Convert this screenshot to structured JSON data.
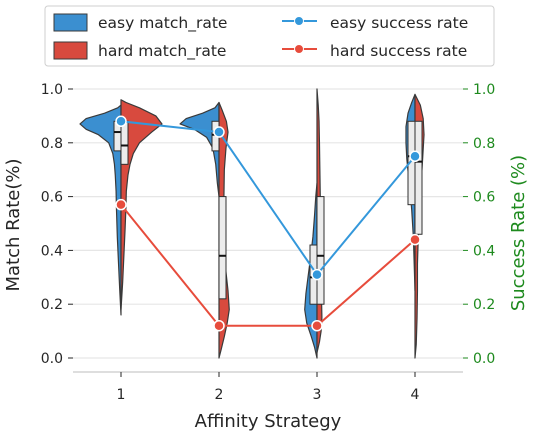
{
  "chart_data": {
    "type": "violin+line",
    "xlabel": "Affinity Strategy",
    "ylabel": "Match Rate(%)",
    "y2label": "Success Rate (%)",
    "categories": [
      "1",
      "2",
      "3",
      "4"
    ],
    "ylim": [
      0.0,
      1.0
    ],
    "y2lim": [
      0.0,
      1.0
    ],
    "yticks": [
      "0.0",
      "0.2",
      "0.4",
      "0.6",
      "0.8",
      "1.0"
    ],
    "y2ticks": [
      "0.0",
      "0.2",
      "0.4",
      "0.6",
      "0.8",
      "1.0"
    ],
    "grid": true,
    "legend_position": "top",
    "legend": [
      {
        "label": "easy match_rate",
        "kind": "patch",
        "color": "#3b8fd0"
      },
      {
        "label": "hard match_rate",
        "kind": "patch",
        "color": "#d84a3e"
      },
      {
        "label": "easy success rate",
        "kind": "line",
        "color": "#3498db"
      },
      {
        "label": "hard success rate",
        "kind": "line",
        "color": "#e74c3c"
      }
    ],
    "violins": [
      {
        "category": "1",
        "easy": {
          "density": [
            [
              0.16,
              0.0
            ],
            [
              0.25,
              0.03
            ],
            [
              0.35,
              0.06
            ],
            [
              0.45,
              0.09
            ],
            [
              0.55,
              0.11
            ],
            [
              0.62,
              0.12
            ],
            [
              0.68,
              0.14
            ],
            [
              0.72,
              0.16
            ],
            [
              0.76,
              0.2
            ],
            [
              0.8,
              0.3
            ],
            [
              0.83,
              0.55
            ],
            [
              0.85,
              0.85
            ],
            [
              0.87,
              1.0
            ],
            [
              0.89,
              0.85
            ],
            [
              0.91,
              0.4
            ],
            [
              0.93,
              0.08
            ],
            [
              0.94,
              0.0
            ]
          ],
          "q1": 0.77,
          "median": 0.84,
          "q3": 0.88
        },
        "hard": {
          "density": [
            [
              0.18,
              0.0
            ],
            [
              0.28,
              0.04
            ],
            [
              0.38,
              0.07
            ],
            [
              0.48,
              0.1
            ],
            [
              0.56,
              0.12
            ],
            [
              0.62,
              0.13
            ],
            [
              0.68,
              0.17
            ],
            [
              0.72,
              0.22
            ],
            [
              0.76,
              0.3
            ],
            [
              0.8,
              0.45
            ],
            [
              0.84,
              0.75
            ],
            [
              0.87,
              1.0
            ],
            [
              0.9,
              0.85
            ],
            [
              0.93,
              0.45
            ],
            [
              0.95,
              0.12
            ],
            [
              0.96,
              0.0
            ]
          ],
          "q1": 0.72,
          "median": 0.79,
          "q3": 0.88
        }
      },
      {
        "category": "2",
        "easy": {
          "density": [
            [
              0.6,
              0.0
            ],
            [
              0.65,
              0.04
            ],
            [
              0.72,
              0.08
            ],
            [
              0.78,
              0.15
            ],
            [
              0.82,
              0.3
            ],
            [
              0.85,
              0.6
            ],
            [
              0.87,
              0.95
            ],
            [
              0.89,
              0.8
            ],
            [
              0.91,
              0.4
            ],
            [
              0.93,
              0.1
            ],
            [
              0.95,
              0.0
            ]
          ],
          "q1": 0.77,
          "median": 0.83,
          "q3": 0.88
        },
        "hard": {
          "density": [
            [
              0.0,
              0.0
            ],
            [
              0.03,
              0.05
            ],
            [
              0.08,
              0.13
            ],
            [
              0.13,
              0.2
            ],
            [
              0.18,
              0.25
            ],
            [
              0.25,
              0.22
            ],
            [
              0.32,
              0.17
            ],
            [
              0.4,
              0.14
            ],
            [
              0.5,
              0.12
            ],
            [
              0.6,
              0.12
            ],
            [
              0.7,
              0.13
            ],
            [
              0.78,
              0.17
            ],
            [
              0.84,
              0.22
            ],
            [
              0.88,
              0.18
            ],
            [
              0.92,
              0.08
            ],
            [
              0.95,
              0.0
            ]
          ],
          "q1": 0.22,
          "median": 0.38,
          "q3": 0.6
        }
      },
      {
        "category": "3",
        "easy": {
          "density": [
            [
              0.0,
              0.0
            ],
            [
              0.04,
              0.06
            ],
            [
              0.08,
              0.14
            ],
            [
              0.13,
              0.25
            ],
            [
              0.18,
              0.3
            ],
            [
              0.24,
              0.27
            ],
            [
              0.3,
              0.22
            ],
            [
              0.37,
              0.16
            ],
            [
              0.45,
              0.1
            ],
            [
              0.53,
              0.06
            ],
            [
              0.6,
              0.03
            ],
            [
              0.65,
              0.0
            ]
          ],
          "q1": 0.2,
          "median": 0.3,
          "q3": 0.42
        },
        "hard": {
          "density": [
            [
              0.02,
              0.0
            ],
            [
              0.06,
              0.06
            ],
            [
              0.1,
              0.1
            ],
            [
              0.15,
              0.12
            ],
            [
              0.22,
              0.11
            ],
            [
              0.3,
              0.1
            ],
            [
              0.4,
              0.08
            ],
            [
              0.5,
              0.08
            ],
            [
              0.6,
              0.08
            ],
            [
              0.7,
              0.07
            ],
            [
              0.8,
              0.06
            ],
            [
              0.88,
              0.05
            ],
            [
              0.94,
              0.03
            ],
            [
              1.0,
              0.0
            ]
          ],
          "q1": 0.2,
          "median": 0.38,
          "q3": 0.6
        }
      },
      {
        "category": "4",
        "easy": {
          "density": [
            [
              0.25,
              0.0
            ],
            [
              0.35,
              0.02
            ],
            [
              0.45,
              0.04
            ],
            [
              0.55,
              0.08
            ],
            [
              0.62,
              0.12
            ],
            [
              0.68,
              0.16
            ],
            [
              0.74,
              0.2
            ],
            [
              0.8,
              0.22
            ],
            [
              0.86,
              0.22
            ],
            [
              0.91,
              0.17
            ],
            [
              0.95,
              0.08
            ],
            [
              0.98,
              0.0
            ]
          ],
          "q1": 0.57,
          "median": 0.75,
          "q3": 0.88
        },
        "hard": {
          "density": [
            [
              0.0,
              0.0
            ],
            [
              0.05,
              0.03
            ],
            [
              0.15,
              0.05
            ],
            [
              0.25,
              0.06
            ],
            [
              0.35,
              0.06
            ],
            [
              0.45,
              0.08
            ],
            [
              0.55,
              0.11
            ],
            [
              0.65,
              0.15
            ],
            [
              0.75,
              0.19
            ],
            [
              0.83,
              0.22
            ],
            [
              0.89,
              0.2
            ],
            [
              0.94,
              0.13
            ],
            [
              0.98,
              0.0
            ]
          ],
          "q1": 0.46,
          "median": 0.73,
          "q3": 0.88
        }
      }
    ],
    "series": [
      {
        "name": "easy success rate",
        "color": "#3498db",
        "values": [
          0.88,
          0.84,
          0.31,
          0.75
        ]
      },
      {
        "name": "hard success rate",
        "color": "#e74c3c",
        "values": [
          0.57,
          0.12,
          0.12,
          0.44
        ]
      }
    ]
  }
}
